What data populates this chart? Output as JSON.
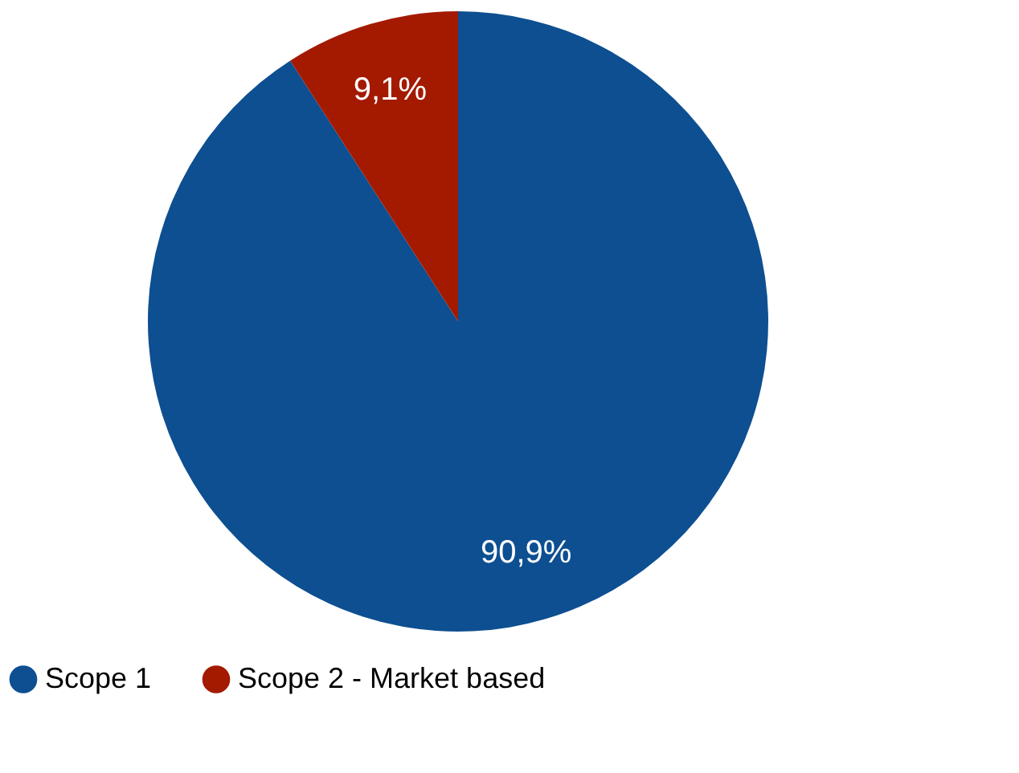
{
  "chart_data": {
    "type": "pie",
    "categories": [
      "Scope 1",
      "Scope 2 - Market based"
    ],
    "values": [
      90.9,
      9.1
    ],
    "colors": [
      "#0d4f91",
      "#a31a00"
    ],
    "value_labels": [
      "90,9%",
      "9,1%"
    ],
    "legend": "bottom"
  }
}
